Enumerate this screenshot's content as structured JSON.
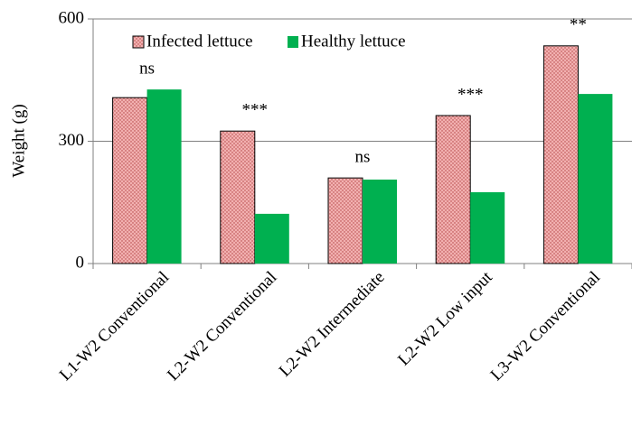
{
  "chart_data": {
    "type": "bar",
    "y_label": "Weight (g)",
    "categories": [
      "L1-W2 Conventional",
      "L2-W2 Conventional",
      "L2-W2 Intermediate",
      "L2-W2 Low input",
      "L3-W2 Conventional"
    ],
    "series": [
      {
        "name": "Infected lettuce",
        "color": "#f2b0b0",
        "values": [
          407,
          325,
          210,
          363,
          534
        ]
      },
      {
        "name": "Healthy lettuce",
        "color": "#00b050",
        "values": [
          427,
          122,
          206,
          175,
          416
        ]
      }
    ],
    "annotations": [
      "ns",
      "***",
      "ns",
      "***",
      "**"
    ],
    "ylim": [
      0,
      600
    ],
    "yticks": [
      0,
      300,
      600
    ],
    "grid": true,
    "legend": "top"
  }
}
